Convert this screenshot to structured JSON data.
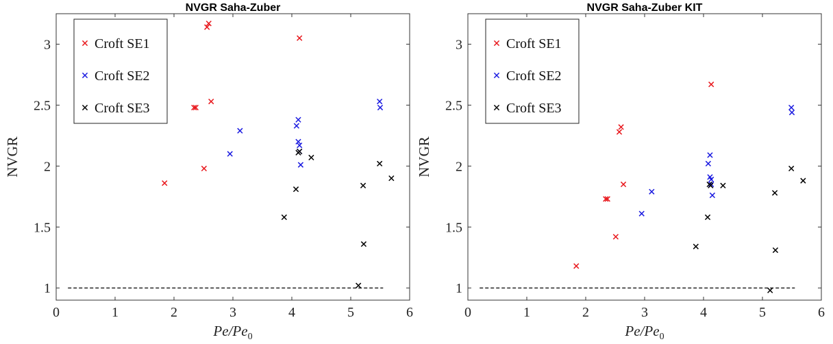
{
  "chart_data": [
    {
      "type": "scatter",
      "title": "NVGR Saha-Zuber",
      "xlabel": "Pe/Pe",
      "xlabel_sub": "0",
      "ylabel": "NVGR",
      "xlim": [
        0,
        6
      ],
      "ylim": [
        0.9,
        3.25
      ],
      "xticks": [
        0,
        1,
        2,
        3,
        4,
        5,
        6
      ],
      "yticks": [
        1,
        1.5,
        2,
        2.5,
        3
      ],
      "ytick_labels": [
        "1",
        "1.5",
        "2",
        "2.5",
        "3"
      ],
      "grid": false,
      "legend_position": "top-left",
      "reference_line": {
        "y": 1,
        "x_from": 0.2,
        "x_to": 5.55,
        "style": "dashed",
        "color": "#000000"
      },
      "series": [
        {
          "name": "Croft SE1",
          "color": "#e8161b",
          "marker": "x",
          "points": [
            [
              1.84,
              1.86
            ],
            [
              2.34,
              2.48
            ],
            [
              2.37,
              2.48
            ],
            [
              2.51,
              1.98
            ],
            [
              2.56,
              3.14
            ],
            [
              2.59,
              3.17
            ],
            [
              2.63,
              2.53
            ],
            [
              4.13,
              3.05
            ]
          ]
        },
        {
          "name": "Croft SE2",
          "color": "#1a1ae0",
          "marker": "x",
          "points": [
            [
              2.95,
              2.1
            ],
            [
              3.12,
              2.29
            ],
            [
              4.08,
              2.33
            ],
            [
              4.11,
              2.38
            ],
            [
              4.11,
              2.2
            ],
            [
              4.13,
              2.17
            ],
            [
              4.13,
              2.12
            ],
            [
              4.15,
              2.01
            ],
            [
              5.49,
              2.53
            ],
            [
              5.5,
              2.48
            ]
          ]
        },
        {
          "name": "Croft SE3",
          "color": "#000000",
          "marker": "x",
          "points": [
            [
              3.87,
              1.58
            ],
            [
              4.07,
              1.81
            ],
            [
              4.11,
              2.11
            ],
            [
              4.13,
              2.12
            ],
            [
              4.33,
              2.07
            ],
            [
              5.13,
              1.02
            ],
            [
              5.21,
              1.84
            ],
            [
              5.22,
              1.36
            ],
            [
              5.49,
              2.02
            ],
            [
              5.69,
              1.9
            ]
          ]
        }
      ]
    },
    {
      "type": "scatter",
      "title": "NVGR Saha-Zuber KIT",
      "xlabel": "Pe/Pe",
      "xlabel_sub": "0",
      "ylabel": "NVGR",
      "xlim": [
        0,
        6
      ],
      "ylim": [
        0.9,
        3.25
      ],
      "xticks": [
        0,
        1,
        2,
        3,
        4,
        5,
        6
      ],
      "yticks": [
        1,
        1.5,
        2,
        2.5,
        3
      ],
      "ytick_labels": [
        "1",
        "1.5",
        "2",
        "2.5",
        "3"
      ],
      "grid": false,
      "legend_position": "top-left",
      "reference_line": {
        "y": 1,
        "x_from": 0.2,
        "x_to": 5.55,
        "style": "dashed",
        "color": "#000000"
      },
      "series": [
        {
          "name": "Croft SE1",
          "color": "#e8161b",
          "marker": "x",
          "points": [
            [
              1.84,
              1.18
            ],
            [
              2.34,
              1.73
            ],
            [
              2.37,
              1.73
            ],
            [
              2.51,
              1.42
            ],
            [
              2.57,
              2.28
            ],
            [
              2.6,
              2.32
            ],
            [
              2.64,
              1.85
            ],
            [
              4.13,
              2.67
            ]
          ]
        },
        {
          "name": "Croft SE2",
          "color": "#1a1ae0",
          "marker": "x",
          "points": [
            [
              2.95,
              1.61
            ],
            [
              3.12,
              1.79
            ],
            [
              4.08,
              2.02
            ],
            [
              4.11,
              2.09
            ],
            [
              4.11,
              1.91
            ],
            [
              4.13,
              1.89
            ],
            [
              4.13,
              1.85
            ],
            [
              4.15,
              1.76
            ],
            [
              5.49,
              2.48
            ],
            [
              5.5,
              2.44
            ]
          ]
        },
        {
          "name": "Croft SE3",
          "color": "#000000",
          "marker": "x",
          "points": [
            [
              3.87,
              1.34
            ],
            [
              4.07,
              1.58
            ],
            [
              4.1,
              1.85
            ],
            [
              4.12,
              1.84
            ],
            [
              4.33,
              1.84
            ],
            [
              5.13,
              0.98
            ],
            [
              5.21,
              1.78
            ],
            [
              5.22,
              1.31
            ],
            [
              5.49,
              1.98
            ],
            [
              5.69,
              1.88
            ]
          ]
        }
      ]
    }
  ]
}
